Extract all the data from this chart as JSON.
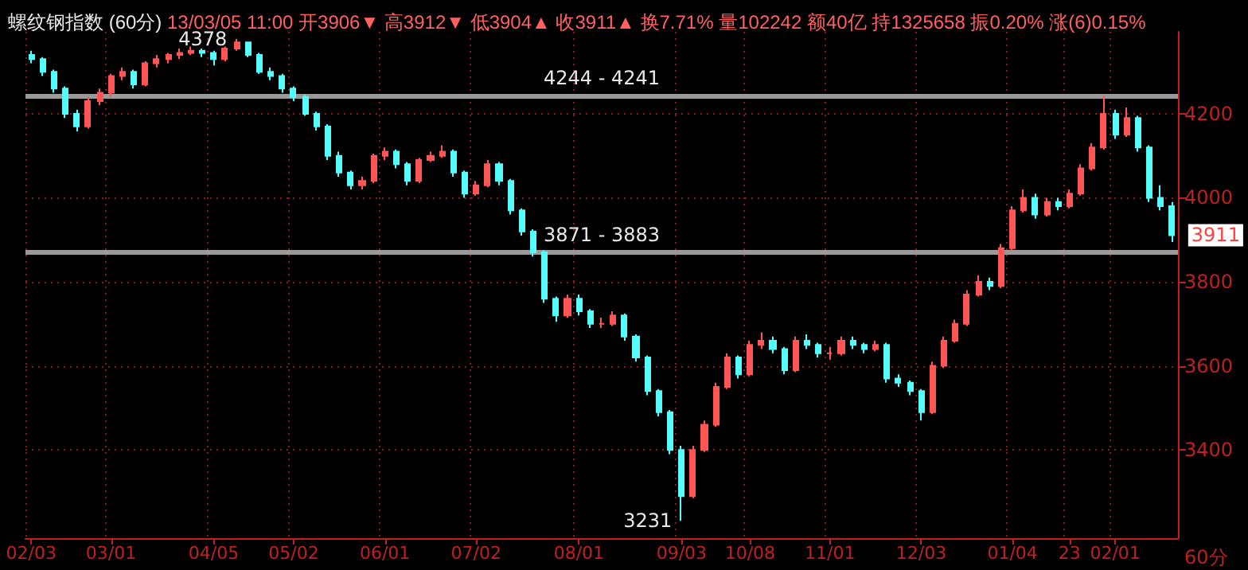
{
  "chart_data": {
    "type": "candlestick",
    "title": "螺纹钢指数 (60分)",
    "subtitle": "13/03/05 11:00 开3906▼ 高3912▼ 低3904▲ 收3911▲ 换7.71% 量102242 额40亿 持1325658 振0.20% 涨(6)0.15%",
    "xlabel": "60分",
    "categories": [
      "02/03",
      null,
      null,
      null,
      null,
      null,
      null,
      "03/01",
      null,
      null,
      null,
      null,
      null,
      null,
      null,
      null,
      "04/05",
      null,
      null,
      null,
      null,
      null,
      null,
      "05/02",
      null,
      null,
      null,
      null,
      null,
      null,
      null,
      "06/01",
      null,
      null,
      null,
      null,
      null,
      null,
      null,
      "07/02",
      null,
      null,
      null,
      null,
      null,
      null,
      null,
      null,
      "08/01",
      null,
      null,
      null,
      null,
      null,
      null,
      null,
      null,
      "09/03",
      null,
      null,
      null,
      null,
      null,
      "10/08",
      null,
      null,
      null,
      null,
      null,
      null,
      "11/01",
      null,
      null,
      null,
      null,
      null,
      null,
      null,
      "12/03",
      null,
      null,
      null,
      null,
      null,
      null,
      null,
      "01/04",
      null,
      null,
      null,
      null,
      "23",
      null,
      null,
      null,
      "02/01",
      null,
      null,
      null,
      null,
      null
    ],
    "ohlc": [
      [
        4340,
        4350,
        4320,
        4330
      ],
      [
        4330,
        4335,
        4290,
        4300
      ],
      [
        4300,
        4305,
        4250,
        4260
      ],
      [
        4260,
        4265,
        4190,
        4200
      ],
      [
        4200,
        4210,
        4158,
        4170
      ],
      [
        4170,
        4240,
        4165,
        4230
      ],
      [
        4230,
        4260,
        4220,
        4250
      ],
      [
        4250,
        4295,
        4240,
        4290
      ],
      [
        4290,
        4310,
        4280,
        4300
      ],
      [
        4300,
        4305,
        4260,
        4270
      ],
      [
        4270,
        4325,
        4265,
        4320
      ],
      [
        4320,
        4340,
        4310,
        4330
      ],
      [
        4330,
        4345,
        4320,
        4340
      ],
      [
        4340,
        4355,
        4330,
        4345
      ],
      [
        4345,
        4360,
        4340,
        4350
      ],
      [
        4350,
        4355,
        4335,
        4345
      ],
      [
        4345,
        4350,
        4315,
        4330
      ],
      [
        4330,
        4360,
        4325,
        4355
      ],
      [
        4355,
        4378,
        4350,
        4370
      ],
      [
        4370,
        4372,
        4335,
        4340
      ],
      [
        4340,
        4345,
        4295,
        4300
      ],
      [
        4300,
        4310,
        4280,
        4290
      ],
      [
        4290,
        4295,
        4250,
        4260
      ],
      [
        4260,
        4265,
        4230,
        4240
      ],
      [
        4240,
        4245,
        4195,
        4200
      ],
      [
        4200,
        4205,
        4160,
        4170
      ],
      [
        4170,
        4175,
        4090,
        4100
      ],
      [
        4100,
        4110,
        4050,
        4060
      ],
      [
        4060,
        4065,
        4020,
        4030
      ],
      [
        4030,
        4050,
        4020,
        4040
      ],
      [
        4040,
        4105,
        4035,
        4100
      ],
      [
        4100,
        4120,
        4090,
        4110
      ],
      [
        4110,
        4115,
        4070,
        4080
      ],
      [
        4080,
        4085,
        4030,
        4040
      ],
      [
        4040,
        4095,
        4035,
        4090
      ],
      [
        4090,
        4110,
        4085,
        4100
      ],
      [
        4100,
        4125,
        4095,
        4110
      ],
      [
        4110,
        4115,
        4050,
        4060
      ],
      [
        4060,
        4065,
        4000,
        4010
      ],
      [
        4010,
        4040,
        4005,
        4030
      ],
      [
        4030,
        4090,
        4025,
        4080
      ],
      [
        4080,
        4085,
        4030,
        4040
      ],
      [
        4040,
        4045,
        3960,
        3970
      ],
      [
        3970,
        3975,
        3910,
        3920
      ],
      [
        3920,
        3925,
        3860,
        3870
      ],
      [
        3870,
        3875,
        3750,
        3760
      ],
      [
        3760,
        3765,
        3705,
        3720
      ],
      [
        3720,
        3770,
        3715,
        3760
      ],
      [
        3760,
        3770,
        3720,
        3730
      ],
      [
        3730,
        3735,
        3690,
        3700
      ],
      [
        3700,
        3715,
        3690,
        3700
      ],
      [
        3700,
        3730,
        3695,
        3720
      ],
      [
        3720,
        3725,
        3660,
        3670
      ],
      [
        3670,
        3675,
        3610,
        3620
      ],
      [
        3620,
        3625,
        3530,
        3540
      ],
      [
        3540,
        3545,
        3480,
        3490
      ],
      [
        3490,
        3495,
        3390,
        3400
      ],
      [
        3400,
        3410,
        3231,
        3290
      ],
      [
        3290,
        3410,
        3285,
        3400
      ],
      [
        3400,
        3470,
        3395,
        3460
      ],
      [
        3460,
        3560,
        3455,
        3550
      ],
      [
        3550,
        3630,
        3545,
        3620
      ],
      [
        3620,
        3625,
        3570,
        3580
      ],
      [
        3580,
        3660,
        3575,
        3650
      ],
      [
        3650,
        3680,
        3640,
        3660
      ],
      [
        3660,
        3670,
        3630,
        3640
      ],
      [
        3640,
        3645,
        3580,
        3590
      ],
      [
        3590,
        3670,
        3585,
        3660
      ],
      [
        3660,
        3675,
        3640,
        3650
      ],
      [
        3650,
        3655,
        3620,
        3630
      ],
      [
        3630,
        3645,
        3615,
        3630
      ],
      [
        3630,
        3670,
        3625,
        3660
      ],
      [
        3660,
        3670,
        3640,
        3650
      ],
      [
        3650,
        3655,
        3630,
        3640
      ],
      [
        3640,
        3660,
        3635,
        3650
      ],
      [
        3650,
        3655,
        3560,
        3570
      ],
      [
        3570,
        3580,
        3550,
        3560
      ],
      [
        3560,
        3565,
        3530,
        3540
      ],
      [
        3540,
        3545,
        3470,
        3490
      ],
      [
        3490,
        3610,
        3485,
        3600
      ],
      [
        3600,
        3670,
        3595,
        3660
      ],
      [
        3660,
        3710,
        3655,
        3700
      ],
      [
        3700,
        3780,
        3695,
        3770
      ],
      [
        3770,
        3815,
        3765,
        3800
      ],
      [
        3800,
        3810,
        3780,
        3790
      ],
      [
        3790,
        3890,
        3785,
        3880
      ],
      [
        3880,
        3980,
        3875,
        3970
      ],
      [
        3970,
        4020,
        3965,
        4000
      ],
      [
        4000,
        4010,
        3950,
        3960
      ],
      [
        3960,
        4000,
        3955,
        3990
      ],
      [
        3990,
        4000,
        3970,
        3980
      ],
      [
        3980,
        4020,
        3975,
        4010
      ],
      [
        4010,
        4080,
        4005,
        4070
      ],
      [
        4070,
        4130,
        4065,
        4120
      ],
      [
        4120,
        4244,
        4115,
        4200
      ],
      [
        4200,
        4210,
        4140,
        4150
      ],
      [
        4150,
        4215,
        4145,
        4190
      ],
      [
        4190,
        4195,
        4110,
        4120
      ],
      [
        4120,
        4125,
        3990,
        4000
      ],
      [
        4000,
        4030,
        3970,
        3980
      ],
      [
        3980,
        3990,
        3895,
        3911
      ]
    ],
    "ylim": [
      3190,
      4395
    ],
    "yticks": [
      3400,
      3600,
      3800,
      4000,
      4200
    ],
    "grid": true,
    "ref_lines": [
      {
        "axis": "y",
        "value": 4244,
        "label": "4244 - 4241",
        "color": "#9a9a9a"
      },
      {
        "axis": "y",
        "value": 3871,
        "label": "3871 - 3883",
        "color": "#9a9a9a"
      }
    ],
    "annotations": [
      "4378",
      "3231",
      "3911"
    ]
  }
}
